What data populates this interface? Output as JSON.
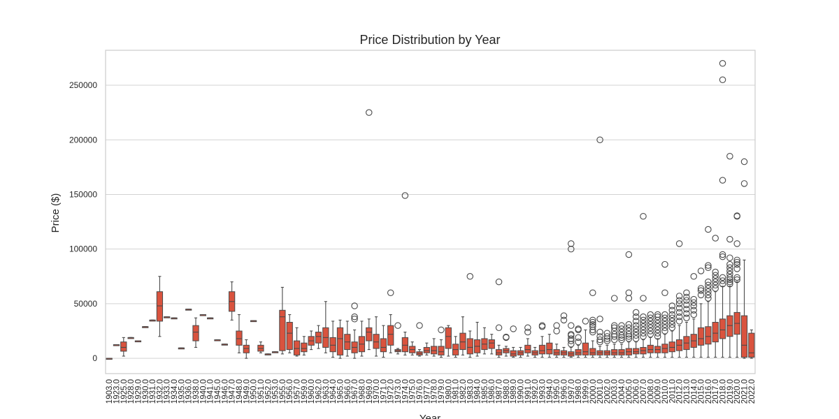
{
  "chart_data": {
    "type": "box",
    "title": "Price Distribution by Year",
    "xlabel": "Year",
    "ylabel": "Price ($)",
    "ylim": [
      -14000,
      282000
    ],
    "yticks": [
      0,
      50000,
      100000,
      150000,
      200000,
      250000
    ],
    "grid": "horizontal",
    "colors": {
      "box": "#d9533e",
      "edge": "#4a4a4a",
      "grid": "#d3d3d3",
      "frame": "#cccccc"
    },
    "boxes": [
      {
        "year": "1903.0",
        "min": 0,
        "q1": 0,
        "med": 0,
        "q3": 0,
        "max": 0,
        "outliers": []
      },
      {
        "year": "1923.0",
        "min": 12500,
        "q1": 12500,
        "med": 12500,
        "q3": 12500,
        "max": 12500,
        "outliers": []
      },
      {
        "year": "1925.0",
        "min": 2000,
        "q1": 6500,
        "med": 10000,
        "q3": 15000,
        "max": 19000,
        "outliers": []
      },
      {
        "year": "1928.0",
        "min": 19000,
        "q1": 19000,
        "med": 19000,
        "q3": 19000,
        "max": 19000,
        "outliers": []
      },
      {
        "year": "1929.0",
        "min": 16000,
        "q1": 16000,
        "med": 16000,
        "q3": 16000,
        "max": 16000,
        "outliers": []
      },
      {
        "year": "1930.0",
        "min": 29000,
        "q1": 29000,
        "med": 29000,
        "q3": 29000,
        "max": 29000,
        "outliers": []
      },
      {
        "year": "1931.0",
        "min": 35000,
        "q1": 35000,
        "med": 35000,
        "q3": 35000,
        "max": 35000,
        "outliers": []
      },
      {
        "year": "1932.0",
        "min": 20000,
        "q1": 34000,
        "med": 48000,
        "q3": 61000,
        "max": 75000,
        "outliers": []
      },
      {
        "year": "1933.0",
        "min": 38000,
        "q1": 38000,
        "med": 38000,
        "q3": 38000,
        "max": 38000,
        "outliers": []
      },
      {
        "year": "1934.0",
        "min": 37000,
        "q1": 37000,
        "med": 37000,
        "q3": 37000,
        "max": 37000,
        "outliers": []
      },
      {
        "year": "1935.0",
        "min": 9500,
        "q1": 9500,
        "med": 9500,
        "q3": 9500,
        "max": 9500,
        "outliers": []
      },
      {
        "year": "1936.0",
        "min": 45000,
        "q1": 45000,
        "med": 45000,
        "q3": 45000,
        "max": 45000,
        "outliers": []
      },
      {
        "year": "1938.0",
        "min": 10000,
        "q1": 16000,
        "med": 24000,
        "q3": 30000,
        "max": 37000,
        "outliers": []
      },
      {
        "year": "1940.0",
        "min": 40000,
        "q1": 40000,
        "med": 40000,
        "q3": 40000,
        "max": 40000,
        "outliers": []
      },
      {
        "year": "1941.0",
        "min": 37000,
        "q1": 37000,
        "med": 37000,
        "q3": 37000,
        "max": 37000,
        "outliers": []
      },
      {
        "year": "1945.0",
        "min": 17000,
        "q1": 17000,
        "med": 17000,
        "q3": 17000,
        "max": 17000,
        "outliers": []
      },
      {
        "year": "1946.0",
        "min": 13000,
        "q1": 13000,
        "med": 13000,
        "q3": 13000,
        "max": 13000,
        "outliers": []
      },
      {
        "year": "1947.0",
        "min": 35000,
        "q1": 43000,
        "med": 52000,
        "q3": 61000,
        "max": 70000,
        "outliers": []
      },
      {
        "year": "1948.0",
        "min": 5000,
        "q1": 12000,
        "med": 18000,
        "q3": 25000,
        "max": 40000,
        "outliers": []
      },
      {
        "year": "1949.0",
        "min": 0,
        "q1": 5000,
        "med": 9000,
        "q3": 12000,
        "max": 17000,
        "outliers": []
      },
      {
        "year": "1950.0",
        "min": 34500,
        "q1": 34500,
        "med": 34500,
        "q3": 34500,
        "max": 34500,
        "outliers": []
      },
      {
        "year": "1951.0",
        "min": 5000,
        "q1": 6500,
        "med": 9000,
        "q3": 12000,
        "max": 15000,
        "outliers": []
      },
      {
        "year": "1952.0",
        "min": 4000,
        "q1": 4000,
        "med": 4000,
        "q3": 4000,
        "max": 4000,
        "outliers": []
      },
      {
        "year": "1953.0",
        "min": 6000,
        "q1": 6000,
        "med": 6000,
        "q3": 6000,
        "max": 6000,
        "outliers": []
      },
      {
        "year": "1955.0",
        "min": 4000,
        "q1": 7000,
        "med": 38000,
        "q3": 44000,
        "max": 65000,
        "outliers": []
      },
      {
        "year": "1956.0",
        "min": 5000,
        "q1": 8000,
        "med": 23000,
        "q3": 33000,
        "max": 40000,
        "outliers": []
      },
      {
        "year": "1957.0",
        "min": 2000,
        "q1": 3000,
        "med": 9000,
        "q3": 16000,
        "max": 28000,
        "outliers": []
      },
      {
        "year": "1959.0",
        "min": 3000,
        "q1": 6000,
        "med": 9000,
        "q3": 14000,
        "max": 20000,
        "outliers": []
      },
      {
        "year": "1960.0",
        "min": 8000,
        "q1": 12000,
        "med": 16000,
        "q3": 20000,
        "max": 25000,
        "outliers": []
      },
      {
        "year": "1962.0",
        "min": 9000,
        "q1": 14000,
        "med": 20000,
        "q3": 24000,
        "max": 30000,
        "outliers": []
      },
      {
        "year": "1963.0",
        "min": 5000,
        "q1": 10000,
        "med": 19000,
        "q3": 28000,
        "max": 52000,
        "outliers": []
      },
      {
        "year": "1964.0",
        "min": 1000,
        "q1": 6000,
        "med": 12000,
        "q3": 19000,
        "max": 34000,
        "outliers": []
      },
      {
        "year": "1965.0",
        "min": 0,
        "q1": 3000,
        "med": 18000,
        "q3": 28000,
        "max": 35000,
        "outliers": []
      },
      {
        "year": "1966.0",
        "min": 2000,
        "q1": 8000,
        "med": 15000,
        "q3": 22000,
        "max": 34000,
        "outliers": []
      },
      {
        "year": "1967.0",
        "min": 0,
        "q1": 5000,
        "med": 10000,
        "q3": 15000,
        "max": 26000,
        "outliers": [
          36000,
          38000,
          48000
        ]
      },
      {
        "year": "1968.0",
        "min": 2000,
        "q1": 6000,
        "med": 13000,
        "q3": 20000,
        "max": 34000,
        "outliers": []
      },
      {
        "year": "1969.0",
        "min": 8000,
        "q1": 16000,
        "med": 24000,
        "q3": 28000,
        "max": 36000,
        "outliers": [
          225000
        ]
      },
      {
        "year": "1970.0",
        "min": 2000,
        "q1": 9000,
        "med": 15000,
        "q3": 22000,
        "max": 38000,
        "outliers": []
      },
      {
        "year": "1971.0",
        "min": 1000,
        "q1": 6000,
        "med": 10000,
        "q3": 18000,
        "max": 30000,
        "outliers": []
      },
      {
        "year": "1972.0",
        "min": 5000,
        "q1": 12000,
        "med": 22000,
        "q3": 30000,
        "max": 40000,
        "outliers": [
          60000
        ]
      },
      {
        "year": "1973.0",
        "min": 4000,
        "q1": 6000,
        "med": 7000,
        "q3": 8000,
        "max": 9000,
        "outliers": [
          30000
        ]
      },
      {
        "year": "1974.0",
        "min": 3000,
        "q1": 6000,
        "med": 12000,
        "q3": 19000,
        "max": 24000,
        "outliers": [
          149000
        ]
      },
      {
        "year": "1975.0",
        "min": 3000,
        "q1": 5000,
        "med": 8000,
        "q3": 11000,
        "max": 15000,
        "outliers": []
      },
      {
        "year": "1976.0",
        "min": 2000,
        "q1": 3000,
        "med": 4500,
        "q3": 6000,
        "max": 8000,
        "outliers": [
          30000
        ]
      },
      {
        "year": "1977.0",
        "min": 3000,
        "q1": 5000,
        "med": 7000,
        "q3": 10000,
        "max": 14000,
        "outliers": []
      },
      {
        "year": "1978.0",
        "min": 2000,
        "q1": 4000,
        "med": 7000,
        "q3": 11000,
        "max": 18000,
        "outliers": []
      },
      {
        "year": "1979.0",
        "min": 1000,
        "q1": 3000,
        "med": 6000,
        "q3": 11000,
        "max": 17000,
        "outliers": [
          26000
        ]
      },
      {
        "year": "1980.0",
        "min": 2000,
        "q1": 9000,
        "med": 20000,
        "q3": 28000,
        "max": 30000,
        "outliers": []
      },
      {
        "year": "1981.0",
        "min": 1000,
        "q1": 3000,
        "med": 8000,
        "q3": 13000,
        "max": 20000,
        "outliers": []
      },
      {
        "year": "1982.0",
        "min": 3000,
        "q1": 8000,
        "med": 15000,
        "q3": 23000,
        "max": 38000,
        "outliers": []
      },
      {
        "year": "1983.0",
        "min": 1000,
        "q1": 4000,
        "med": 10000,
        "q3": 18000,
        "max": 25000,
        "outliers": [
          75000
        ]
      },
      {
        "year": "1984.0",
        "min": 2000,
        "q1": 5000,
        "med": 11000,
        "q3": 17000,
        "max": 33000,
        "outliers": []
      },
      {
        "year": "1985.0",
        "min": 4000,
        "q1": 8000,
        "med": 13000,
        "q3": 18000,
        "max": 28000,
        "outliers": []
      },
      {
        "year": "1986.0",
        "min": 4000,
        "q1": 9000,
        "med": 14000,
        "q3": 17000,
        "max": 22000,
        "outliers": []
      },
      {
        "year": "1987.0",
        "min": 1000,
        "q1": 3000,
        "med": 5000,
        "q3": 8000,
        "max": 12000,
        "outliers": [
          28000,
          70000
        ]
      },
      {
        "year": "1988.0",
        "min": 2000,
        "q1": 5000,
        "med": 7000,
        "q3": 9000,
        "max": 11000,
        "outliers": [
          19000,
          19500
        ]
      },
      {
        "year": "1989.0",
        "min": 1000,
        "q1": 2000,
        "med": 4000,
        "q3": 7000,
        "max": 10000,
        "outliers": [
          27000
        ]
      },
      {
        "year": "1990.0",
        "min": 1000,
        "q1": 3000,
        "med": 5000,
        "q3": 7000,
        "max": 10000,
        "outliers": []
      },
      {
        "year": "1991.0",
        "min": 2000,
        "q1": 5000,
        "med": 8000,
        "q3": 12000,
        "max": 18000,
        "outliers": [
          24000,
          28000
        ]
      },
      {
        "year": "1992.0",
        "min": 1000,
        "q1": 3000,
        "med": 5000,
        "q3": 7000,
        "max": 10000,
        "outliers": []
      },
      {
        "year": "1993.0",
        "min": 1000,
        "q1": 4000,
        "med": 7000,
        "q3": 12000,
        "max": 20000,
        "outliers": [
          29000,
          30000
        ]
      },
      {
        "year": "1994.0",
        "min": 1000,
        "q1": 4000,
        "med": 8000,
        "q3": 14000,
        "max": 22000,
        "outliers": []
      },
      {
        "year": "1995.0",
        "min": 1000,
        "q1": 3000,
        "med": 5000,
        "q3": 8000,
        "max": 13000,
        "outliers": [
          25000,
          30000
        ]
      },
      {
        "year": "1996.0",
        "min": 1000,
        "q1": 3000,
        "med": 5000,
        "q3": 7000,
        "max": 10000,
        "outliers": [
          35000,
          39000
        ]
      },
      {
        "year": "1997.0",
        "min": 1000,
        "q1": 2000,
        "med": 4000,
        "q3": 6000,
        "max": 10000,
        "outliers": [
          13000,
          16000,
          18000,
          21000,
          22000,
          30000,
          100000,
          105000
        ]
      },
      {
        "year": "1998.0",
        "min": 1000,
        "q1": 3000,
        "med": 5000,
        "q3": 8000,
        "max": 12000,
        "outliers": [
          15000,
          19000,
          26000,
          27000
        ]
      },
      {
        "year": "1999.0",
        "min": 1000,
        "q1": 3000,
        "med": 6000,
        "q3": 14000,
        "max": 26000,
        "outliers": [
          34000
        ]
      },
      {
        "year": "2000.0",
        "min": 1000,
        "q1": 3000,
        "med": 5000,
        "q3": 9000,
        "max": 16000,
        "outliers": [
          24000,
          26000,
          29000,
          31000,
          33000,
          35000,
          60000
        ]
      },
      {
        "year": "2001.0",
        "min": 1000,
        "q1": 3000,
        "med": 5000,
        "q3": 7000,
        "max": 11000,
        "outliers": [
          15000,
          17000,
          20000,
          24000,
          36000,
          200000
        ]
      },
      {
        "year": "2002.0",
        "min": 1000,
        "q1": 3000,
        "med": 5000,
        "q3": 7000,
        "max": 12000,
        "outliers": [
          16000,
          18000,
          20000,
          23000
        ]
      },
      {
        "year": "2003.0",
        "min": 1000,
        "q1": 3000,
        "med": 5000,
        "q3": 8000,
        "max": 13000,
        "outliers": [
          17000,
          20000,
          22000,
          25000,
          28000,
          30000,
          55000
        ]
      },
      {
        "year": "2004.0",
        "min": 1000,
        "q1": 3000,
        "med": 5000,
        "q3": 8000,
        "max": 13000,
        "outliers": [
          17000,
          19000,
          21000,
          24000,
          27000,
          30000
        ]
      },
      {
        "year": "2005.0",
        "min": 1000,
        "q1": 3000,
        "med": 6000,
        "q3": 9000,
        "max": 15000,
        "outliers": [
          18000,
          20000,
          22000,
          25000,
          28000,
          31000,
          55000,
          60000,
          95000
        ]
      },
      {
        "year": "2006.0",
        "min": 1000,
        "q1": 4000,
        "med": 6000,
        "q3": 9000,
        "max": 15000,
        "outliers": [
          18000,
          21000,
          24000,
          27000,
          30000,
          34000,
          38000,
          42000
        ]
      },
      {
        "year": "2007.0",
        "min": 1000,
        "q1": 4000,
        "med": 7000,
        "q3": 10000,
        "max": 17000,
        "outliers": [
          20000,
          23000,
          26000,
          29000,
          32000,
          35000,
          38000,
          55000,
          130000
        ]
      },
      {
        "year": "2008.0",
        "min": 1000,
        "q1": 5000,
        "med": 8000,
        "q3": 12000,
        "max": 19000,
        "outliers": [
          22000,
          25000,
          28000,
          31000,
          34000,
          37000,
          40000
        ]
      },
      {
        "year": "2009.0",
        "min": 1000,
        "q1": 5000,
        "med": 8000,
        "q3": 11000,
        "max": 18000,
        "outliers": [
          20000,
          23000,
          26000,
          29000,
          32000,
          35000,
          38000,
          40000
        ]
      },
      {
        "year": "2010.0",
        "min": 1000,
        "q1": 5000,
        "med": 9000,
        "q3": 13000,
        "max": 22000,
        "outliers": [
          25000,
          28000,
          31000,
          34000,
          37000,
          40000,
          60000,
          86000
        ]
      },
      {
        "year": "2011.0",
        "min": 1000,
        "q1": 6000,
        "med": 10000,
        "q3": 15000,
        "max": 25000,
        "outliers": [
          28000,
          31000,
          34000,
          37000,
          40000,
          44000,
          48000
        ]
      },
      {
        "year": "2012.0",
        "min": 1000,
        "q1": 7000,
        "med": 12000,
        "q3": 17000,
        "max": 30000,
        "outliers": [
          34000,
          38000,
          42000,
          46000,
          50000,
          53000,
          57000,
          105000
        ]
      },
      {
        "year": "2013.0",
        "min": 1000,
        "q1": 8000,
        "med": 14000,
        "q3": 20000,
        "max": 33000,
        "outliers": [
          37000,
          41000,
          45000,
          49000,
          53000,
          56000,
          60000
        ]
      },
      {
        "year": "2014.0",
        "min": 1000,
        "q1": 10000,
        "med": 16000,
        "q3": 22000,
        "max": 36000,
        "outliers": [
          40000,
          44000,
          48000,
          51000,
          54000,
          75000
        ]
      },
      {
        "year": "2015.0",
        "min": 1000,
        "q1": 12000,
        "med": 18000,
        "q3": 28000,
        "max": 50000,
        "outliers": [
          58000,
          62000,
          64000,
          80000
        ]
      },
      {
        "year": "2016.0",
        "min": 1000,
        "q1": 13000,
        "med": 20000,
        "q3": 29000,
        "max": 52000,
        "outliers": [
          55000,
          58000,
          61000,
          64000,
          67000,
          70000,
          83000,
          85000,
          118000
        ]
      },
      {
        "year": "2017.0",
        "min": 1000,
        "q1": 15000,
        "med": 23000,
        "q3": 33000,
        "max": 61000,
        "outliers": [
          64000,
          67000,
          70000,
          73000,
          76000,
          79000,
          110000
        ]
      },
      {
        "year": "2018.0",
        "min": 1000,
        "q1": 18000,
        "med": 26000,
        "q3": 36000,
        "max": 66000,
        "outliers": [
          68000,
          71000,
          74000,
          93000,
          95000,
          163000,
          255000,
          270000
        ]
      },
      {
        "year": "2019.0",
        "min": 1000,
        "q1": 20000,
        "med": 30000,
        "q3": 39000,
        "max": 66000,
        "outliers": [
          68000,
          70000,
          72000,
          74000,
          77000,
          80000,
          83000,
          86000,
          92000,
          109000,
          185000
        ]
      },
      {
        "year": "2020.0",
        "min": 1000,
        "q1": 22000,
        "med": 32000,
        "q3": 42000,
        "max": 70000,
        "outliers": [
          72000,
          74000,
          82000,
          86000,
          88000,
          90000,
          105000,
          130000,
          130500
        ]
      },
      {
        "year": "2021.0",
        "min": 0,
        "q1": 1000,
        "med": 12000,
        "q3": 39000,
        "max": 90000,
        "outliers": [
          160000,
          180000
        ]
      },
      {
        "year": "2022.0",
        "min": 0,
        "q1": 1000,
        "med": 5000,
        "q3": 23000,
        "max": 26000,
        "outliers": []
      }
    ]
  }
}
